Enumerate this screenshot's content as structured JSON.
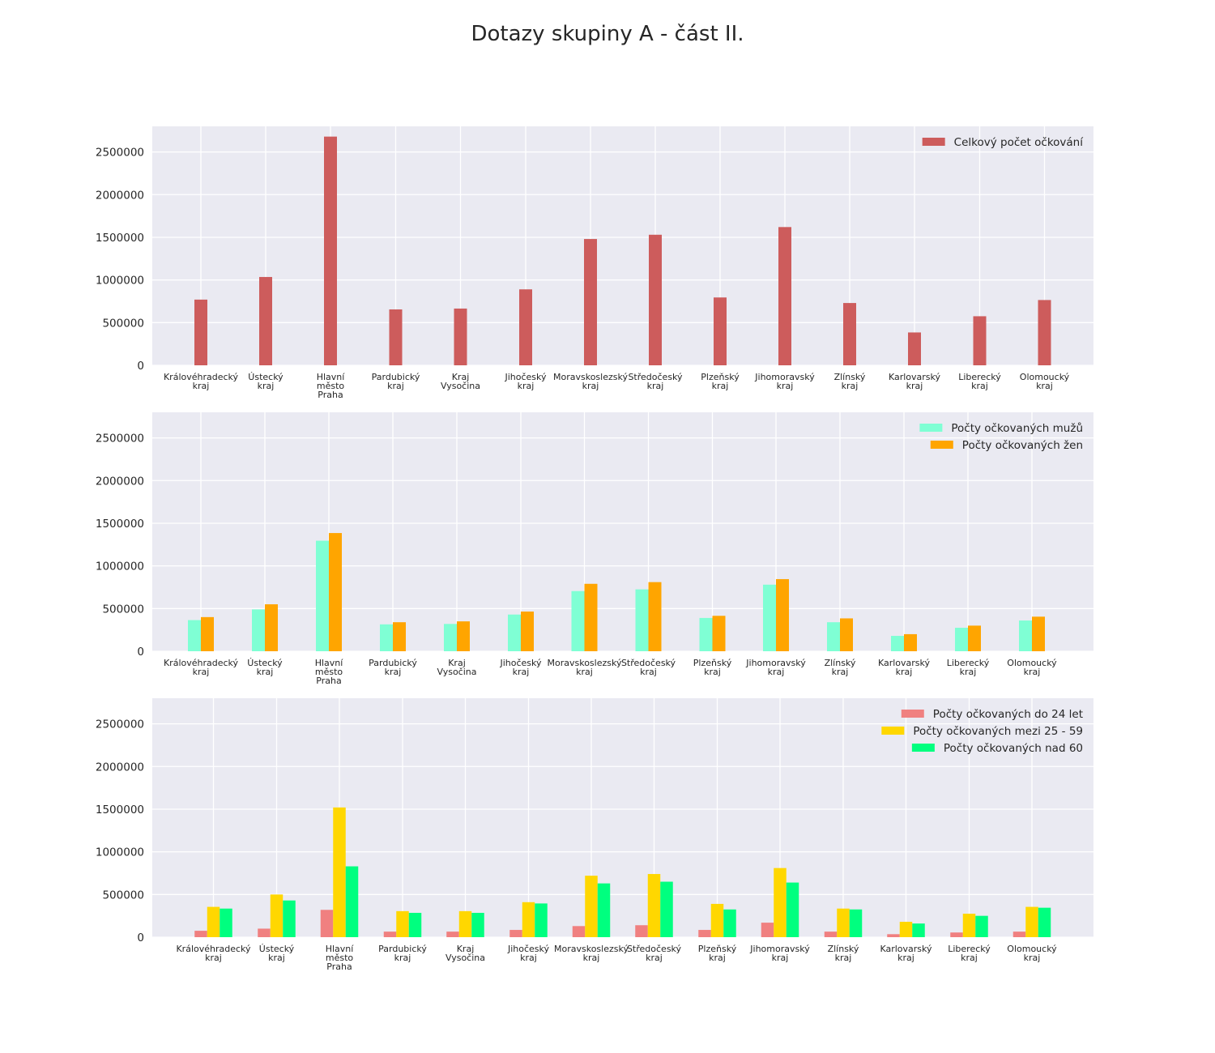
{
  "figure_title": "Dotazy skupiny A - část II.",
  "chart_data": [
    {
      "type": "bar",
      "categories": [
        [
          "Královéhradecký",
          "kraj"
        ],
        [
          "Ústecký",
          "kraj"
        ],
        [
          "Hlavní",
          "město",
          "Praha"
        ],
        [
          "Pardubický",
          "kraj"
        ],
        [
          "Kraj",
          "Vysočina"
        ],
        [
          "Jihočeský",
          "kraj"
        ],
        [
          "Moravskoslezský",
          "kraj"
        ],
        [
          "Středočeský",
          "kraj"
        ],
        [
          "Plzeňský",
          "kraj"
        ],
        [
          "Jihomoravský",
          "kraj"
        ],
        [
          "Zlínský",
          "kraj"
        ],
        [
          "Karlovarský",
          "kraj"
        ],
        [
          "Liberecký",
          "kraj"
        ],
        [
          "Olomoucký",
          "kraj"
        ]
      ],
      "series": [
        {
          "name": "Celkový počet očkování",
          "color": "#cd5c5c",
          "values": [
            770000,
            1035000,
            2680000,
            655000,
            665000,
            890000,
            1480000,
            1530000,
            795000,
            1620000,
            730000,
            385000,
            575000,
            765000
          ]
        }
      ],
      "ylim": [
        0,
        2800000
      ],
      "yticks": [
        0,
        500000,
        1000000,
        1500000,
        2000000,
        2500000
      ],
      "legend": "top-right",
      "grid": true
    },
    {
      "type": "bar",
      "categories": [
        [
          "Královéhradecký",
          "kraj"
        ],
        [
          "Ústecký",
          "kraj"
        ],
        [
          "Hlavní",
          "město",
          "Praha"
        ],
        [
          "Pardubický",
          "kraj"
        ],
        [
          "Kraj",
          "Vysočina"
        ],
        [
          "Jihočeský",
          "kraj"
        ],
        [
          "Moravskoslezský",
          "kraj"
        ],
        [
          "Středočeský",
          "kraj"
        ],
        [
          "Plzeňský",
          "kraj"
        ],
        [
          "Jihomoravský",
          "kraj"
        ],
        [
          "Zlínský",
          "kraj"
        ],
        [
          "Karlovarský",
          "kraj"
        ],
        [
          "Liberecký",
          "kraj"
        ],
        [
          "Olomoucký",
          "kraj"
        ]
      ],
      "series": [
        {
          "name": "Počty očkovaných mužů",
          "color": "#7fffd4",
          "values": [
            365000,
            490000,
            1295000,
            315000,
            320000,
            430000,
            705000,
            725000,
            390000,
            780000,
            340000,
            180000,
            275000,
            360000
          ]
        },
        {
          "name": "Počty očkovaných žen",
          "color": "#ffa500",
          "values": [
            400000,
            550000,
            1385000,
            340000,
            350000,
            465000,
            790000,
            810000,
            415000,
            845000,
            385000,
            200000,
            300000,
            405000
          ]
        }
      ],
      "ylim": [
        0,
        2800000
      ],
      "yticks": [
        0,
        500000,
        1000000,
        1500000,
        2000000,
        2500000
      ],
      "legend": "top-right",
      "grid": true
    },
    {
      "type": "bar",
      "categories": [
        [
          "Královéhradecký",
          "kraj"
        ],
        [
          "Ústecký",
          "kraj"
        ],
        [
          "Hlavní",
          "město",
          "Praha"
        ],
        [
          "Pardubický",
          "kraj"
        ],
        [
          "Kraj",
          "Vysočina"
        ],
        [
          "Jihočeský",
          "kraj"
        ],
        [
          "Moravskoslezský",
          "kraj"
        ],
        [
          "Středočeský",
          "kraj"
        ],
        [
          "Plzeňský",
          "kraj"
        ],
        [
          "Jihomoravský",
          "kraj"
        ],
        [
          "Zlínský",
          "kraj"
        ],
        [
          "Karlovarský",
          "kraj"
        ],
        [
          "Liberecký",
          "kraj"
        ],
        [
          "Olomoucký",
          "kraj"
        ]
      ],
      "series": [
        {
          "name": "Počty očkovaných do 24 let",
          "color": "#f08080",
          "values": [
            75000,
            100000,
            320000,
            65000,
            65000,
            85000,
            130000,
            140000,
            85000,
            170000,
            65000,
            35000,
            55000,
            65000
          ]
        },
        {
          "name": "Počty očkovaných mezi 25 - 59",
          "color": "#ffd700",
          "values": [
            355000,
            500000,
            1520000,
            305000,
            305000,
            410000,
            720000,
            740000,
            390000,
            810000,
            335000,
            180000,
            275000,
            355000
          ]
        },
        {
          "name": "Počty očkovaných nad 60",
          "color": "#00ff7f",
          "values": [
            335000,
            430000,
            830000,
            285000,
            285000,
            395000,
            630000,
            650000,
            325000,
            640000,
            325000,
            160000,
            250000,
            345000
          ]
        }
      ],
      "ylim": [
        0,
        2800000
      ],
      "yticks": [
        0,
        500000,
        1000000,
        1500000,
        2000000,
        2500000
      ],
      "legend": "top-right",
      "grid": true
    }
  ]
}
